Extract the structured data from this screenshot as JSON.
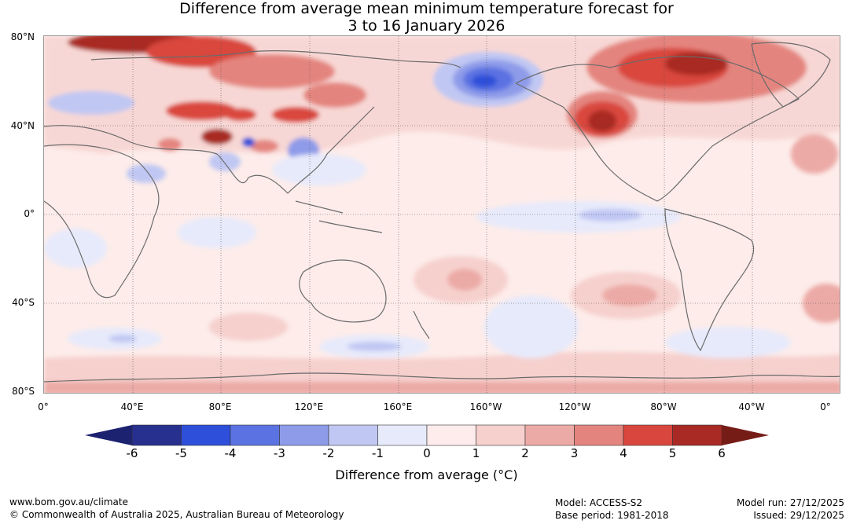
{
  "title": {
    "line1": "Difference from average mean minimum temperature forecast for",
    "line2": "3 to 16 January 2026"
  },
  "map": {
    "latitude_labels": [
      "80°N",
      "40°N",
      "0°",
      "40°S",
      "80°S"
    ],
    "longitude_labels": [
      "0°",
      "40°E",
      "80°E",
      "120°E",
      "160°E",
      "160°W",
      "120°W",
      "80°W",
      "40°W",
      "0°"
    ]
  },
  "legend": {
    "title": "Difference from average (°C)",
    "ticks": [
      "-6",
      "-5",
      "-4",
      "-3",
      "-2",
      "-1",
      "0",
      "1",
      "2",
      "3",
      "4",
      "5",
      "6"
    ],
    "colors": [
      "#27308f",
      "#2e4fd9",
      "#5b72e2",
      "#8e9be9",
      "#c0c7f3",
      "#e7eafb",
      "#fdeceb",
      "#f6d0cd",
      "#ecaaa6",
      "#e4847e",
      "#d9463e",
      "#a92a24"
    ],
    "low_extend_color": "#1c2170",
    "high_extend_color": "#761c17"
  },
  "footer": {
    "website": "www.bom.gov.au/climate",
    "copyright": "© Commonwealth of Australia 2025, Australian Bureau of Meteorology",
    "model": "Model: ACCESS-S2",
    "base_period": "Base period: 1981-2018",
    "model_run": "Model run: 27/12/2025",
    "issued": "Issued: 29/12/2025"
  }
}
